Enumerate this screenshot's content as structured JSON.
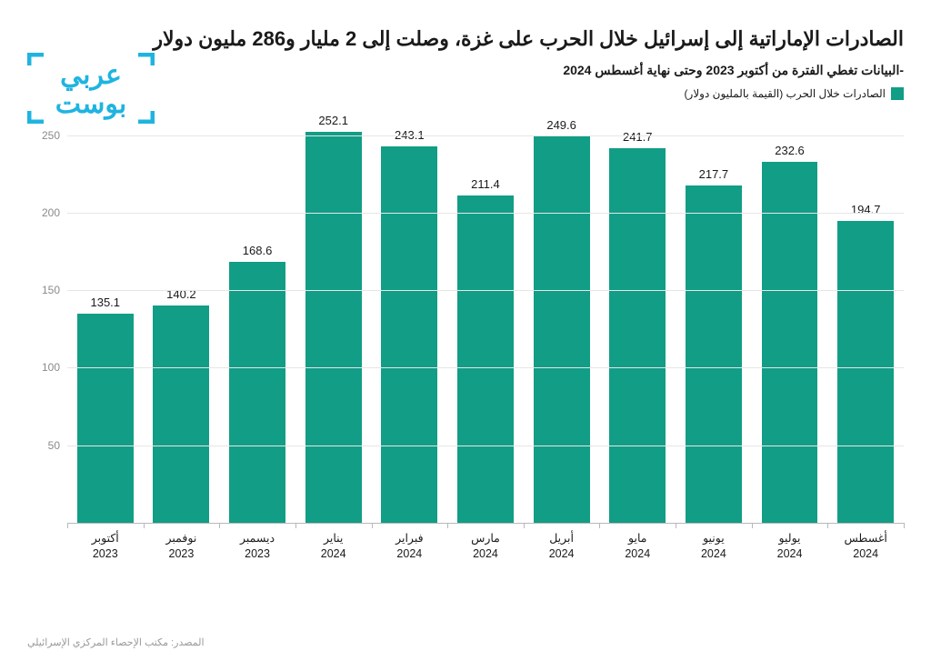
{
  "title": "الصادرات الإماراتية إلى إسرائيل خلال الحرب على غزة، وصلت إلى 2 مليار و286 مليون دولار",
  "subtitle": "-البيانات تغطي الفترة من أكتوبر 2023 وحتى نهاية أغسطس 2024",
  "legend": {
    "label": "الصادرات خلال الحرب (القيمة بالمليون دولار)",
    "swatch_color": "#129d86"
  },
  "logo": {
    "text_top": "عربي",
    "text_bottom": "بوست",
    "color": "#1fb4e0"
  },
  "chart": {
    "type": "bar",
    "categories": [
      "أغسطس 2024",
      "يوليو 2024",
      "يونيو 2024",
      "مايو 2024",
      "أبريل 2024",
      "مارس 2024",
      "فبراير 2024",
      "يناير 2024",
      "ديسمبر 2023",
      "نوفمبر 2023",
      "أكتوبر 2023"
    ],
    "values": [
      194.7,
      232.6,
      217.7,
      241.7,
      249.6,
      211.4,
      243.1,
      252.1,
      168.6,
      140.2,
      135.1
    ],
    "bar_color": "#129d86",
    "ylim": [
      0,
      260
    ],
    "yticks": [
      50,
      100,
      150,
      200,
      250
    ],
    "grid_color": "#e6e6e6",
    "axis_color": "#b8b8b8",
    "background_color": "#ffffff",
    "label_fontsize": 13,
    "value_label_color": "#1a1a1a",
    "bar_width_ratio": 0.74
  },
  "source": "المصدر: مكتب الإحصاء المركزي الإسرائيلي"
}
